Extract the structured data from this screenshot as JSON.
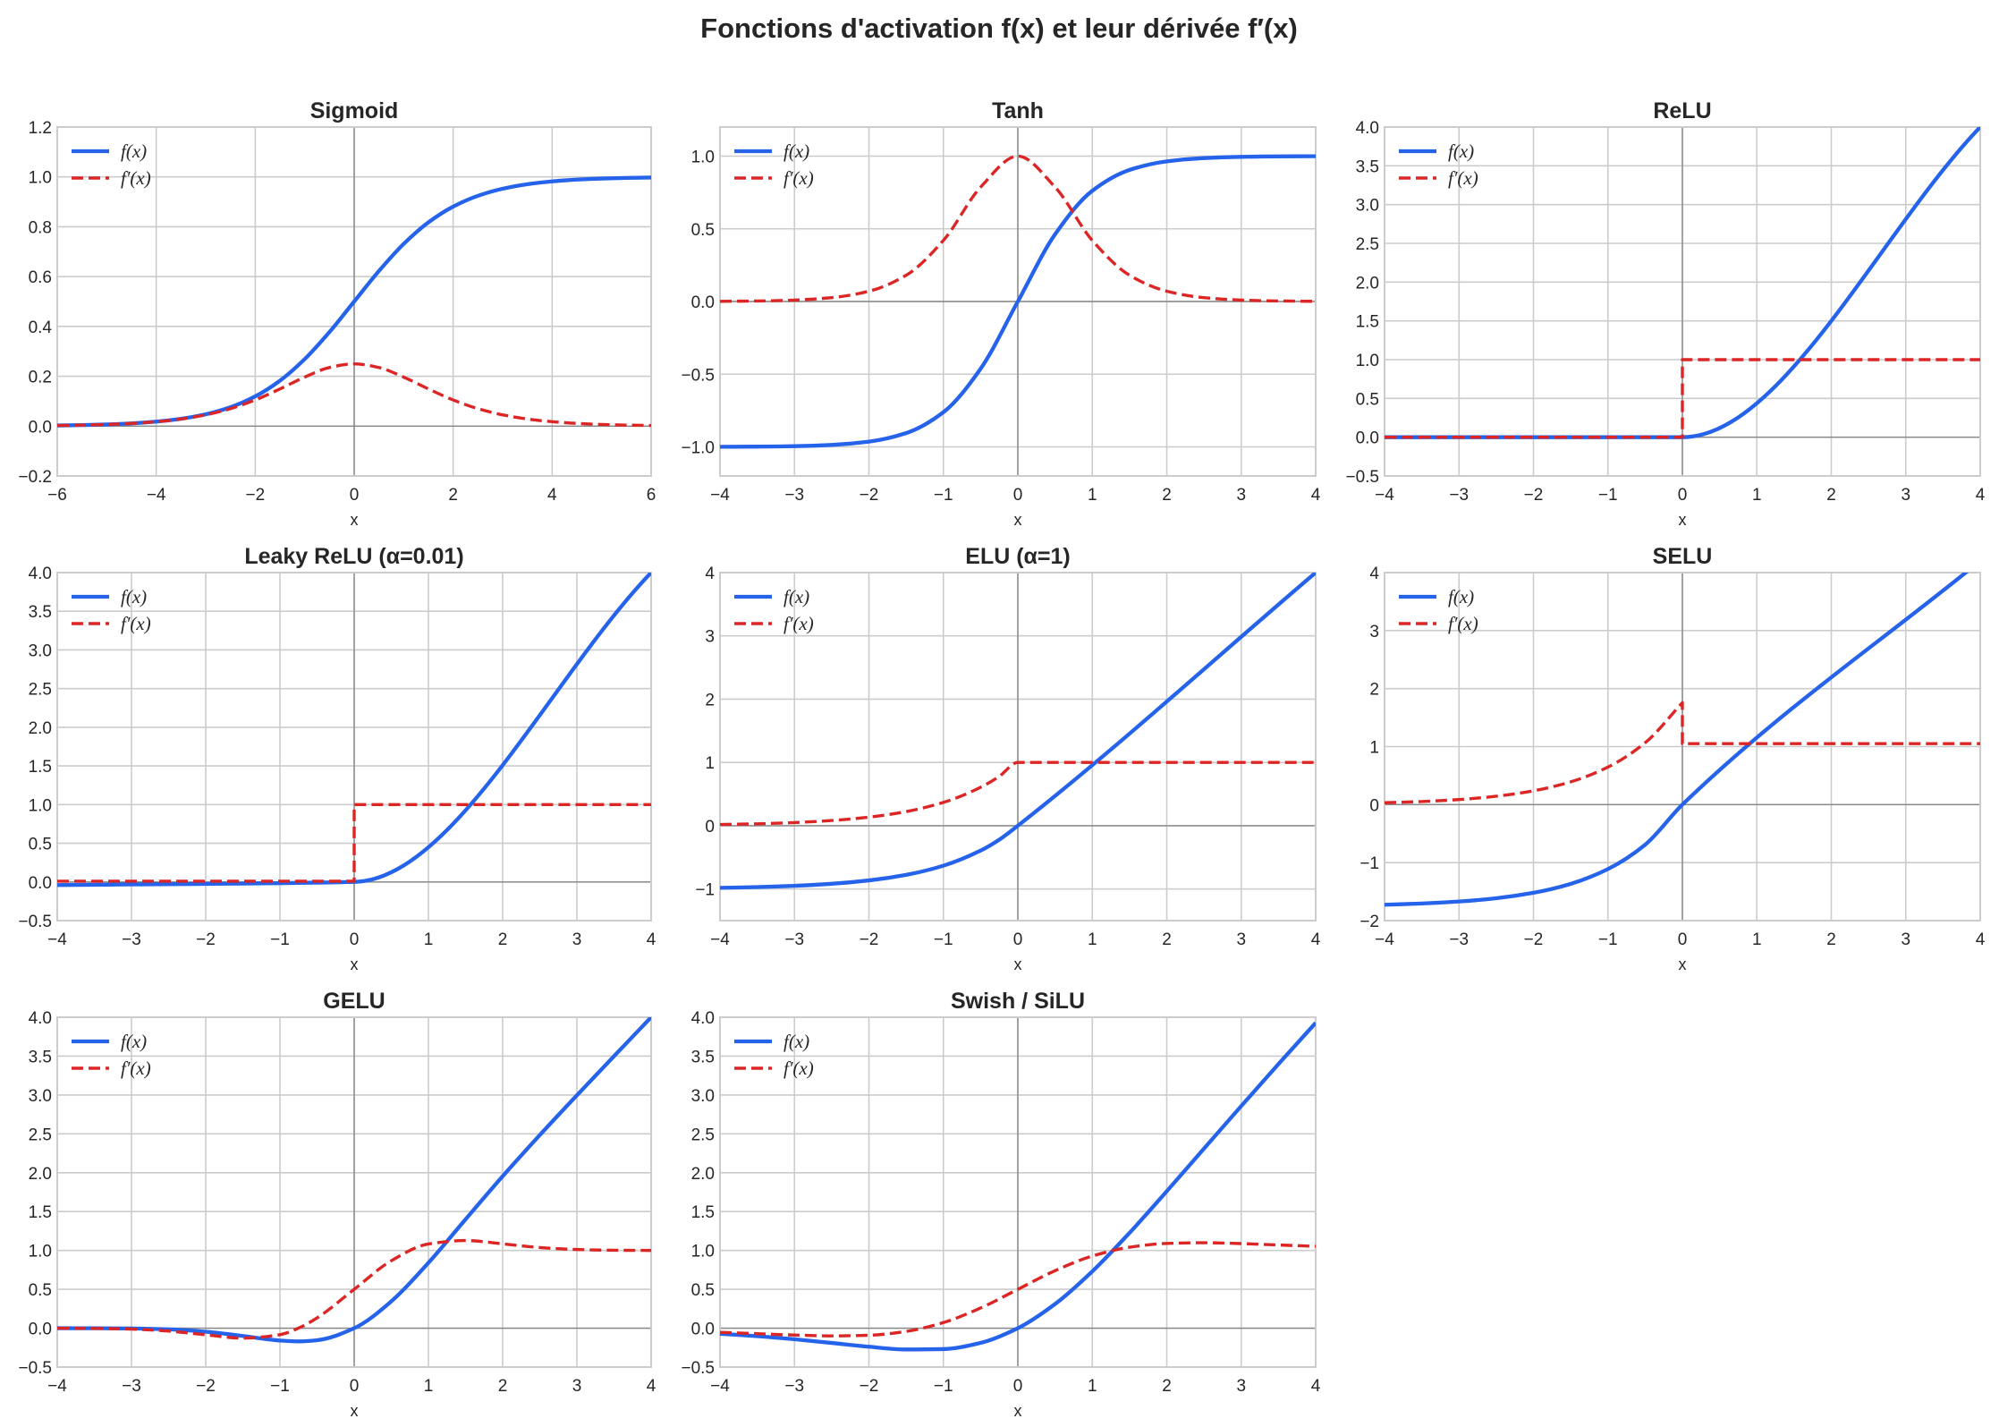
{
  "suptitle": "Fonctions d'activation f(x) et leur dérivée f′(x)",
  "colors": {
    "f": "#2563eb",
    "fprime": "#dc2626",
    "grid": "#cccccc",
    "zero_line": "#888888"
  },
  "chart_data": [
    {
      "type": "line",
      "title": "Sigmoid",
      "xlabel": "x",
      "xlim": [
        -6,
        6
      ],
      "ylim": [
        -0.2,
        1.2
      ],
      "xticks": [
        -6,
        -4,
        -2,
        0,
        2,
        4,
        6
      ],
      "xtick_labels": [
        "−6",
        "−4",
        "−2",
        "0",
        "2",
        "4",
        "6"
      ],
      "yticks": [
        -0.2,
        0,
        0.2,
        0.4,
        0.6,
        0.8,
        1.0,
        1.2
      ],
      "ytick_labels": [
        "−0.2",
        "0.0",
        "0.2",
        "0.4",
        "0.6",
        "0.8",
        "1.0",
        "1.2"
      ],
      "grid": true,
      "legend": "top-left",
      "series": [
        {
          "name": "f(x)",
          "style": "solid",
          "x": [
            -6,
            -5.5,
            -5,
            -4.5,
            -4,
            -3.5,
            -3,
            -2.5,
            -2,
            -1.5,
            -1,
            -0.5,
            0,
            0.5,
            1,
            1.5,
            2,
            2.5,
            3,
            3.5,
            4,
            4.5,
            5,
            5.5,
            6
          ],
          "y": [
            0.0025,
            0.0041,
            0.0067,
            0.011,
            0.018,
            0.0293,
            0.0474,
            0.0759,
            0.1192,
            0.1824,
            0.2689,
            0.3775,
            0.5,
            0.6225,
            0.7311,
            0.8176,
            0.8808,
            0.9241,
            0.9526,
            0.9707,
            0.982,
            0.989,
            0.9933,
            0.9959,
            0.9975
          ]
        },
        {
          "name": "f′(x)",
          "style": "dashed",
          "x": [
            -6,
            -5.5,
            -5,
            -4.5,
            -4,
            -3.5,
            -3,
            -2.5,
            -2,
            -1.5,
            -1,
            -0.5,
            0,
            0.5,
            1,
            1.5,
            2,
            2.5,
            3,
            3.5,
            4,
            4.5,
            5,
            5.5,
            6
          ],
          "y": [
            0.0025,
            0.0041,
            0.0066,
            0.0109,
            0.0177,
            0.0285,
            0.0452,
            0.0701,
            0.105,
            0.1491,
            0.1966,
            0.235,
            0.25,
            0.235,
            0.1966,
            0.1491,
            0.105,
            0.0701,
            0.0452,
            0.0285,
            0.0177,
            0.0109,
            0.0066,
            0.0041,
            0.0025
          ]
        }
      ]
    },
    {
      "type": "line",
      "title": "Tanh",
      "xlabel": "x",
      "xlim": [
        -4,
        4
      ],
      "ylim": [
        -1.2,
        1.2
      ],
      "xticks": [
        -4,
        -3,
        -2,
        -1,
        0,
        1,
        2,
        3,
        4
      ],
      "xtick_labels": [
        "−4",
        "−3",
        "−2",
        "−1",
        "0",
        "1",
        "2",
        "3",
        "4"
      ],
      "yticks": [
        -1,
        -0.5,
        0,
        0.5,
        1
      ],
      "ytick_labels": [
        "−1.0",
        "−0.5",
        "0.0",
        "0.5",
        "1.0"
      ],
      "grid": true,
      "legend": "top-left",
      "series": [
        {
          "name": "f(x)",
          "style": "solid",
          "x": [
            -4,
            -3.5,
            -3,
            -2.5,
            -2,
            -1.5,
            -1,
            -0.5,
            0,
            0.5,
            1,
            1.5,
            2,
            2.5,
            3,
            3.5,
            4
          ],
          "y": [
            -0.9993,
            -0.9982,
            -0.9951,
            -0.9866,
            -0.964,
            -0.9051,
            -0.7616,
            -0.4621,
            0,
            0.4621,
            0.7616,
            0.9051,
            0.964,
            0.9866,
            0.9951,
            0.9982,
            0.9993
          ]
        },
        {
          "name": "f′(x)",
          "style": "dashed",
          "x": [
            -4,
            -3.5,
            -3,
            -2.5,
            -2,
            -1.5,
            -1,
            -0.5,
            0,
            0.5,
            1,
            1.5,
            2,
            2.5,
            3,
            3.5,
            4
          ],
          "y": [
            0.0013,
            0.0036,
            0.0099,
            0.0266,
            0.0707,
            0.1807,
            0.42,
            0.7864,
            1,
            0.7864,
            0.42,
            0.1807,
            0.0707,
            0.0266,
            0.0099,
            0.0036,
            0.0013
          ]
        }
      ]
    },
    {
      "type": "line",
      "title": "ReLU",
      "xlabel": "x",
      "xlim": [
        -4,
        4
      ],
      "ylim": [
        -0.5,
        4
      ],
      "xticks": [
        -4,
        -3,
        -2,
        -1,
        0,
        1,
        2,
        3,
        4
      ],
      "xtick_labels": [
        "−4",
        "−3",
        "−2",
        "−1",
        "0",
        "1",
        "2",
        "3",
        "4"
      ],
      "yticks": [
        -0.5,
        0,
        0.5,
        1,
        1.5,
        2,
        2.5,
        3,
        3.5,
        4
      ],
      "ytick_labels": [
        "−0.5",
        "0.0",
        "0.5",
        "1.0",
        "1.5",
        "2.0",
        "2.5",
        "3.0",
        "3.5",
        "4.0"
      ],
      "grid": true,
      "legend": "top-left",
      "series": [
        {
          "name": "f(x)",
          "style": "solid",
          "x": [
            -4,
            0,
            4
          ],
          "y": [
            0,
            0,
            4
          ]
        },
        {
          "name": "f′(x)",
          "style": "dashed",
          "x": [
            -4,
            0,
            0,
            4
          ],
          "y": [
            0,
            0,
            1,
            1
          ]
        }
      ]
    },
    {
      "type": "line",
      "title": "Leaky ReLU (α=0.01)",
      "xlabel": "x",
      "xlim": [
        -4,
        4
      ],
      "ylim": [
        -0.5,
        4
      ],
      "xticks": [
        -4,
        -3,
        -2,
        -1,
        0,
        1,
        2,
        3,
        4
      ],
      "xtick_labels": [
        "−4",
        "−3",
        "−2",
        "−1",
        "0",
        "1",
        "2",
        "3",
        "4"
      ],
      "yticks": [
        -0.5,
        0,
        0.5,
        1,
        1.5,
        2,
        2.5,
        3,
        3.5,
        4
      ],
      "ytick_labels": [
        "−0.5",
        "0.0",
        "0.5",
        "1.0",
        "1.5",
        "2.0",
        "2.5",
        "3.0",
        "3.5",
        "4.0"
      ],
      "grid": true,
      "legend": "top-left",
      "series": [
        {
          "name": "f(x)",
          "style": "solid",
          "x": [
            -4,
            0,
            4
          ],
          "y": [
            -0.04,
            0,
            4
          ]
        },
        {
          "name": "f′(x)",
          "style": "dashed",
          "x": [
            -4,
            0,
            0,
            4
          ],
          "y": [
            0.01,
            0.01,
            1,
            1
          ]
        }
      ]
    },
    {
      "type": "line",
      "title": "ELU (α=1)",
      "xlabel": "x",
      "xlim": [
        -4,
        4
      ],
      "ylim": [
        -1.5,
        4
      ],
      "xticks": [
        -4,
        -3,
        -2,
        -1,
        0,
        1,
        2,
        3,
        4
      ],
      "xtick_labels": [
        "−4",
        "−3",
        "−2",
        "−1",
        "0",
        "1",
        "2",
        "3",
        "4"
      ],
      "yticks": [
        -1,
        0,
        1,
        2,
        3,
        4
      ],
      "ytick_labels": [
        "−1",
        "0",
        "1",
        "2",
        "3",
        "4"
      ],
      "grid": true,
      "legend": "top-left",
      "series": [
        {
          "name": "f(x)",
          "style": "solid",
          "x": [
            -4,
            -3.5,
            -3,
            -2.5,
            -2,
            -1.5,
            -1,
            -0.5,
            -0.25,
            0,
            4
          ],
          "y": [
            -0.9817,
            -0.9698,
            -0.9502,
            -0.9179,
            -0.8647,
            -0.7769,
            -0.6321,
            -0.3935,
            -0.2212,
            0,
            4
          ]
        },
        {
          "name": "f′(x)",
          "style": "dashed",
          "x": [
            -4,
            -3.5,
            -3,
            -2.5,
            -2,
            -1.5,
            -1,
            -0.5,
            -0.25,
            0,
            4
          ],
          "y": [
            0.0183,
            0.0302,
            0.0498,
            0.0821,
            0.1353,
            0.2231,
            0.3679,
            0.6065,
            0.7788,
            1,
            1
          ]
        }
      ]
    },
    {
      "type": "line",
      "title": "SELU",
      "xlabel": "x",
      "xlim": [
        -4,
        4
      ],
      "ylim": [
        -2,
        4
      ],
      "xticks": [
        -4,
        -3,
        -2,
        -1,
        0,
        1,
        2,
        3,
        4
      ],
      "xtick_labels": [
        "−4",
        "−3",
        "−2",
        "−1",
        "0",
        "1",
        "2",
        "3",
        "4"
      ],
      "yticks": [
        -2,
        -1,
        0,
        1,
        2,
        3,
        4
      ],
      "ytick_labels": [
        "−2",
        "−1",
        "0",
        "1",
        "2",
        "3",
        "4"
      ],
      "grid": true,
      "legend": "top-left",
      "series": [
        {
          "name": "f(x)",
          "style": "solid",
          "x": [
            -4,
            -3.5,
            -3,
            -2.5,
            -2,
            -1.5,
            -1,
            -0.5,
            0,
            4
          ],
          "y": [
            -1.7259,
            -1.705,
            -1.6706,
            -1.6138,
            -1.5202,
            -1.3659,
            -1.1113,
            -0.6918,
            0,
            4.2028
          ]
        },
        {
          "name": "f′(x)",
          "style": "dashed",
          "x": [
            -4,
            -3.5,
            -3,
            -2.5,
            -2,
            -1.5,
            -1,
            -0.5,
            0,
            0,
            4
          ],
          "y": [
            0.0322,
            0.0531,
            0.0875,
            0.1443,
            0.2379,
            0.3923,
            0.6468,
            1.0663,
            1.7581,
            1.0507,
            1.0507
          ]
        }
      ]
    },
    {
      "type": "line",
      "title": "GELU",
      "xlabel": "x",
      "xlim": [
        -4,
        4
      ],
      "ylim": [
        -0.5,
        4
      ],
      "xticks": [
        -4,
        -3,
        -2,
        -1,
        0,
        1,
        2,
        3,
        4
      ],
      "xtick_labels": [
        "−4",
        "−3",
        "−2",
        "−1",
        "0",
        "1",
        "2",
        "3",
        "4"
      ],
      "yticks": [
        -0.5,
        0,
        0.5,
        1,
        1.5,
        2,
        2.5,
        3,
        3.5,
        4
      ],
      "ytick_labels": [
        "−0.5",
        "0.0",
        "0.5",
        "1.0",
        "1.5",
        "2.0",
        "2.5",
        "3.0",
        "3.5",
        "4.0"
      ],
      "grid": true,
      "legend": "top-left",
      "series": [
        {
          "name": "f(x)",
          "style": "solid",
          "x": [
            -4,
            -3.5,
            -3,
            -2.5,
            -2,
            -1.5,
            -1,
            -0.75,
            -0.5,
            0,
            0.5,
            1,
            1.5,
            2,
            2.5,
            3,
            3.5,
            4
          ],
          "y": [
            -0.0001,
            -0.0008,
            -0.004,
            -0.0155,
            -0.0455,
            -0.1002,
            -0.1587,
            -0.17,
            -0.1543,
            0,
            0.3457,
            0.8413,
            1.3998,
            1.9545,
            2.4845,
            2.996,
            3.4992,
            3.9999
          ]
        },
        {
          "name": "f′(x)",
          "style": "dashed",
          "x": [
            -4,
            -3.5,
            -3,
            -2.5,
            -2,
            -1.5,
            -1,
            -0.75,
            -0.5,
            0,
            0.5,
            1,
            1.5,
            2,
            2.5,
            3,
            3.5,
            4
          ],
          "y": [
            -0.0005,
            -0.0028,
            -0.0119,
            -0.0375,
            -0.0852,
            -0.1275,
            -0.0833,
            0.0008,
            0.1325,
            0.5,
            0.8675,
            1.0833,
            1.1275,
            1.0852,
            1.0375,
            1.0119,
            1.0028,
            1.0005
          ]
        }
      ]
    },
    {
      "type": "line",
      "title": "Swish / SiLU",
      "xlabel": "x",
      "xlim": [
        -4,
        4
      ],
      "ylim": [
        -0.5,
        4
      ],
      "xticks": [
        -4,
        -3,
        -2,
        -1,
        0,
        1,
        2,
        3,
        4
      ],
      "xtick_labels": [
        "−4",
        "−3",
        "−2",
        "−1",
        "0",
        "1",
        "2",
        "3",
        "4"
      ],
      "yticks": [
        -0.5,
        0,
        0.5,
        1,
        1.5,
        2,
        2.5,
        3,
        3.5,
        4
      ],
      "ytick_labels": [
        "−0.5",
        "0.0",
        "0.5",
        "1.0",
        "1.5",
        "2.0",
        "2.5",
        "3.0",
        "3.5",
        "4.0"
      ],
      "grid": true,
      "legend": "top-left",
      "series": [
        {
          "name": "f(x)",
          "style": "solid",
          "x": [
            -4,
            -3.5,
            -3,
            -2.5,
            -2,
            -1.5,
            -1,
            -0.5,
            0,
            0.5,
            1,
            1.5,
            2,
            2.5,
            3,
            3.5,
            4
          ],
          "y": [
            -0.0719,
            -0.1025,
            -0.1423,
            -0.1898,
            -0.2384,
            -0.2736,
            -0.2689,
            -0.1888,
            0,
            0.3112,
            0.7311,
            1.2264,
            1.7616,
            2.3102,
            2.8577,
            3.3975,
            3.9281
          ]
        },
        {
          "name": "f′(x)",
          "style": "dashed",
          "x": [
            -4,
            -3.5,
            -3,
            -2.5,
            -2,
            -1.5,
            -1,
            -0.5,
            0,
            0.5,
            1,
            1.5,
            2,
            2.5,
            3,
            3.5,
            4
          ],
          "y": [
            -0.0528,
            -0.0705,
            -0.0882,
            -0.0994,
            -0.0908,
            -0.0413,
            0.0723,
            0.26,
            0.5,
            0.74,
            0.9277,
            1.0413,
            1.0908,
            1.0994,
            1.0882,
            1.0705,
            1.0528
          ]
        }
      ]
    }
  ]
}
